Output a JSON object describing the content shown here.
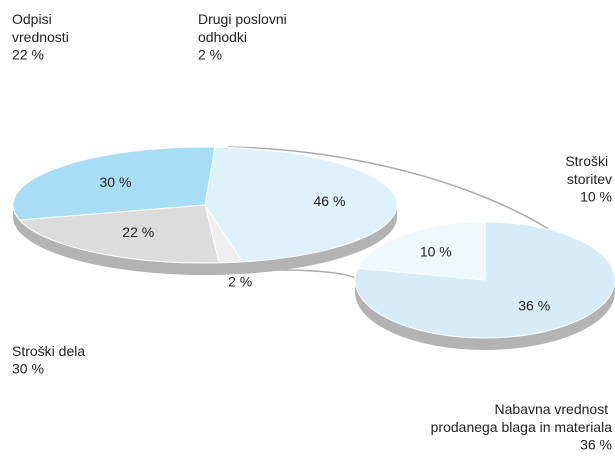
{
  "chart_data": {
    "type": "pie_of_pie",
    "main": {
      "categories": [
        "Drugi poslovni odhodki",
        "Odpisi vrednosti",
        "Stroški dela",
        null
      ],
      "values": [
        2,
        22,
        30,
        46
      ],
      "value_labels": [
        "2 %",
        "22 %",
        "30 %",
        "46 %"
      ],
      "colors": [
        "#efefef",
        "#dcdcdc",
        "#a8def5",
        "#dff1fb"
      ]
    },
    "secondary": {
      "categories": [
        "Stroški storitev",
        "Nabavna vrednost prodanega blaga in materiala"
      ],
      "values": [
        10,
        36
      ],
      "value_labels": [
        "10 %",
        "36 %"
      ],
      "colors": [
        "#eef8fd",
        "#d6ecf9"
      ]
    }
  }
}
